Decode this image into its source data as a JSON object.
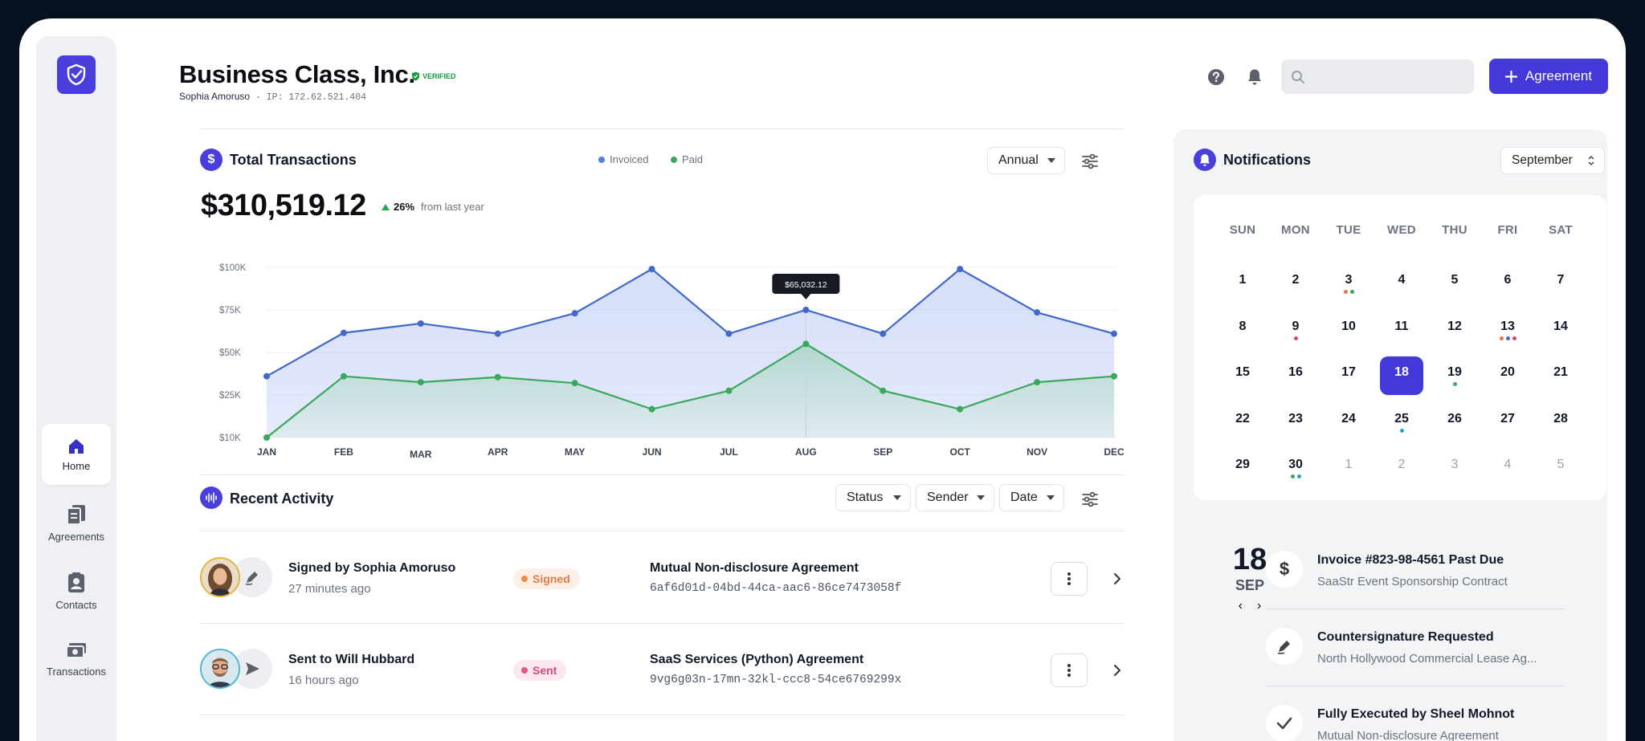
{
  "company": {
    "name": "Business Class, Inc.",
    "verified_label": "VERIFIED",
    "user_name": "Sophia Amoruso",
    "separator": " - ",
    "ip_text": "IP: 172.62.521.404"
  },
  "sidebar": {
    "items": [
      {
        "label": "Home",
        "icon": "home-icon",
        "active": true
      },
      {
        "label": "Agreements",
        "icon": "document-icon"
      },
      {
        "label": "Contacts",
        "icon": "contact-card-icon"
      },
      {
        "label": "Transactions",
        "icon": "cash-icon"
      }
    ]
  },
  "header": {
    "search_placeholder": "",
    "primary_button": "Agreement"
  },
  "transactions": {
    "title": "Total Transactions",
    "legend": [
      "Invoiced",
      "Paid"
    ],
    "period": "Annual",
    "amount": "$310,519.12",
    "delta_pct": "26%",
    "delta_text": "from last year"
  },
  "chart_data": {
    "type": "area",
    "categories": [
      "JAN",
      "FEB",
      "MAR",
      "APR",
      "MAY",
      "JUN",
      "JUL",
      "AUG",
      "SEP",
      "OCT",
      "NOV",
      "DEC"
    ],
    "y_ticks": [
      "$100K",
      "$75K",
      "$50K",
      "$25K",
      "$10K"
    ],
    "series": [
      {
        "name": "Invoiced",
        "color": "#4169c8",
        "values": [
          36000,
          61500,
          67000,
          61000,
          73000,
          99000,
          61000,
          75000,
          61000,
          99000,
          73500,
          61000
        ]
      },
      {
        "name": "Paid",
        "color": "#3aa85a",
        "values": [
          10000,
          36000,
          32500,
          35500,
          32000,
          20000,
          27500,
          55000,
          27500,
          20000,
          32500,
          36000
        ]
      }
    ],
    "tooltip": {
      "category": "AUG",
      "label": "$65,032.12"
    }
  },
  "activity": {
    "title": "Recent Activity",
    "filters": [
      "Status",
      "Sender",
      "Date"
    ],
    "rows": [
      {
        "who": "Signed by Sophia Amoruso",
        "when": "27 minutes ago",
        "status": "Signed",
        "doc": "Mutual Non-disclosure Agreement",
        "doc_id": "6af6d01d-04bd-44ca-aac6-86ce7473058f"
      },
      {
        "who": "Sent to Will Hubbard",
        "when": "16 hours ago",
        "status": "Sent",
        "doc": "SaaS Services (Python) Agreement",
        "doc_id": "9vg6g03n-17mn-32kl-ccc8-54ce6769299x"
      }
    ]
  },
  "notifications": {
    "title": "Notifications",
    "month": "September",
    "weekdays": [
      "SUN",
      "MON",
      "TUE",
      "WED",
      "THU",
      "FRI",
      "SAT"
    ],
    "weeks": [
      [
        "1",
        "2",
        "3",
        "4",
        "5",
        "6",
        "7"
      ],
      [
        "8",
        "9",
        "10",
        "11",
        "12",
        "13",
        "14"
      ],
      [
        "15",
        "16",
        "17",
        "18",
        "19",
        "20",
        "21"
      ],
      [
        "22",
        "23",
        "24",
        "25",
        "26",
        "27",
        "28"
      ],
      [
        "29",
        "30",
        "1",
        "2",
        "3",
        "4",
        "5"
      ]
    ],
    "selected_day": "18",
    "selected_month_abbr": "SEP",
    "events": [
      {
        "title": "Invoice #823-98-4561 Past Due",
        "subtitle": "SaaStr Event Sponsorship Contract",
        "icon": "dollar-icon"
      },
      {
        "title": "Countersignature Requested",
        "subtitle": "North Hollywood Commercial Lease Ag...",
        "icon": "pen-icon"
      },
      {
        "title": "Fully Executed by Sheel Mohnot",
        "subtitle": "Mutual Non-disclosure Agreement",
        "icon": "check-icon"
      }
    ]
  }
}
